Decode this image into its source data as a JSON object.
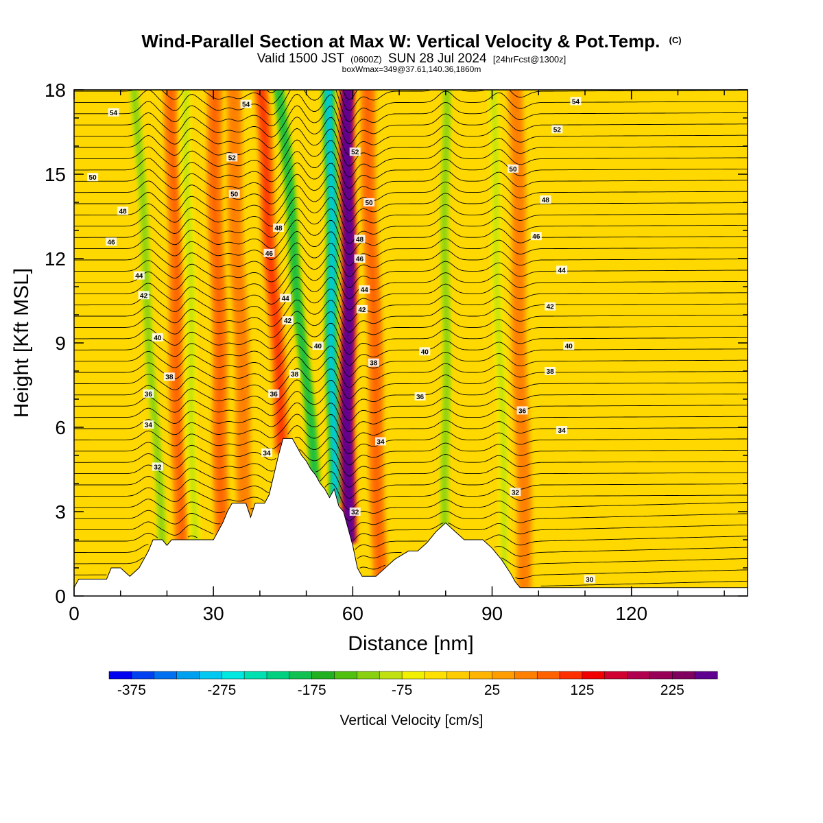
{
  "header": {
    "title": "Wind-Parallel Section at Max W: Vertical Velocity & Pot.Temp.",
    "copyright": "(C)",
    "valid_prefix": "Valid 1500 JST",
    "valid_utc": "(0600Z)",
    "valid_date": "SUN 28 Jul 2024",
    "forecast": "[24hrFcst@1300z]",
    "box_info": "boxWmax=349@37.61,140.36,1860m"
  },
  "chart_data": {
    "type": "heatmap",
    "xlabel": "Distance [nm]",
    "ylabel": "Height [Kft MSL]",
    "xlim": [
      0,
      145
    ],
    "ylim": [
      0,
      18
    ],
    "x_ticks": [
      0,
      30,
      60,
      90,
      120
    ],
    "x_tick_labels": [
      "0",
      "30",
      "60",
      "90",
      "120"
    ],
    "y_ticks": [
      0,
      3,
      6,
      9,
      12,
      15,
      18
    ],
    "y_tick_labels": [
      "0",
      "3",
      "6",
      "9",
      "12",
      "15",
      "18"
    ],
    "colorbar": {
      "label": "Vertical Velocity [cm/s]",
      "tick_values": [
        -375,
        -275,
        -175,
        -75,
        25,
        125,
        225
      ],
      "tick_labels": [
        "-375",
        "-275",
        "-175",
        "-75",
        "25",
        "125",
        "225"
      ],
      "min": -400,
      "max": 275,
      "colors": [
        "#0000f0",
        "#0040f0",
        "#0070f0",
        "#00a0f0",
        "#00c8f0",
        "#00e8e0",
        "#00e0b0",
        "#00d080",
        "#10c050",
        "#20b020",
        "#50c010",
        "#88d010",
        "#c0e010",
        "#f0f000",
        "#ffe000",
        "#ffcc00",
        "#ffb400",
        "#ff9c00",
        "#ff8000",
        "#ff6000",
        "#ff3000",
        "#f00000",
        "#d00030",
        "#b00050",
        "#980058",
        "#800060",
        "#600090"
      ]
    },
    "terrain": [
      [
        0,
        0.3
      ],
      [
        1,
        0.6
      ],
      [
        7,
        0.6
      ],
      [
        8,
        1.0
      ],
      [
        10,
        1.0
      ],
      [
        12,
        0.7
      ],
      [
        14,
        1.0
      ],
      [
        15,
        1.3
      ],
      [
        16,
        1.6
      ],
      [
        17,
        2.0
      ],
      [
        19,
        2.0
      ],
      [
        20,
        1.8
      ],
      [
        21,
        2.0
      ],
      [
        24,
        2.0
      ],
      [
        26,
        2.0
      ],
      [
        29,
        2.0
      ],
      [
        30,
        2.0
      ],
      [
        31,
        2.3
      ],
      [
        32,
        2.6
      ],
      [
        33,
        3.0
      ],
      [
        34,
        3.3
      ],
      [
        37,
        3.3
      ],
      [
        38,
        2.8
      ],
      [
        39,
        3.3
      ],
      [
        41,
        3.3
      ],
      [
        42,
        3.6
      ],
      [
        43,
        4.3
      ],
      [
        44,
        5.0
      ],
      [
        45,
        5.6
      ],
      [
        47,
        5.6
      ],
      [
        48,
        5.3
      ],
      [
        49,
        5.0
      ],
      [
        50,
        4.8
      ],
      [
        51,
        4.5
      ],
      [
        52,
        4.3
      ],
      [
        53,
        4.0
      ],
      [
        54,
        3.8
      ],
      [
        55,
        3.5
      ],
      [
        56,
        3.8
      ],
      [
        57,
        3.2
      ],
      [
        58,
        3.0
      ],
      [
        59,
        2.4
      ],
      [
        60,
        1.8
      ],
      [
        61,
        1.0
      ],
      [
        62,
        0.7
      ],
      [
        65,
        0.7
      ],
      [
        67,
        1.0
      ],
      [
        69,
        1.3
      ],
      [
        72,
        1.6
      ],
      [
        74,
        1.6
      ],
      [
        76,
        1.9
      ],
      [
        78,
        2.3
      ],
      [
        80,
        2.6
      ],
      [
        82,
        2.3
      ],
      [
        84,
        2.0
      ],
      [
        88,
        2.0
      ],
      [
        90,
        1.7
      ],
      [
        92,
        1.3
      ],
      [
        94,
        0.8
      ],
      [
        95,
        0.5
      ],
      [
        96,
        0.3
      ],
      [
        145,
        0.3
      ]
    ],
    "wmax_streaks": [
      {
        "x_bottom": 19,
        "x_top": 13,
        "w": -120
      },
      {
        "x_bottom": 23,
        "x_top": 21,
        "w": 90
      },
      {
        "x_bottom": 26,
        "x_top": 24,
        "w": -90
      },
      {
        "x_bottom": 32,
        "x_top": 30,
        "w": 75
      },
      {
        "x_bottom": 37,
        "x_top": 34,
        "w": 70
      },
      {
        "x_bottom": 45,
        "x_top": 40,
        "w": 120
      },
      {
        "x_bottom": 52,
        "x_top": 44,
        "w": -190
      },
      {
        "x_bottom": 56,
        "x_top": 55,
        "w": -290
      },
      {
        "x_bottom": 59,
        "x_top": 59,
        "w": 349
      },
      {
        "x_bottom": 66,
        "x_top": 63,
        "w": 85
      },
      {
        "x_bottom": 80,
        "x_top": 80,
        "w": -110
      },
      {
        "x_bottom": 93,
        "x_top": 90,
        "w": -95
      },
      {
        "x_bottom": 97,
        "x_top": 95,
        "w": 60
      }
    ],
    "contour_labels": [
      {
        "x": 8.5,
        "y": 17.2,
        "text": "54"
      },
      {
        "x": 37,
        "y": 17.5,
        "text": "54"
      },
      {
        "x": 108,
        "y": 17.6,
        "text": "54"
      },
      {
        "x": 104,
        "y": 16.6,
        "text": "52"
      },
      {
        "x": 34,
        "y": 15.6,
        "text": "52"
      },
      {
        "x": 60.5,
        "y": 15.8,
        "text": "52"
      },
      {
        "x": 4,
        "y": 14.9,
        "text": "50"
      },
      {
        "x": 34.5,
        "y": 14.3,
        "text": "50"
      },
      {
        "x": 63.5,
        "y": 14.0,
        "text": "50"
      },
      {
        "x": 94.5,
        "y": 15.2,
        "text": "50"
      },
      {
        "x": 10.5,
        "y": 13.7,
        "text": "48"
      },
      {
        "x": 44,
        "y": 13.1,
        "text": "48"
      },
      {
        "x": 61.5,
        "y": 12.7,
        "text": "48"
      },
      {
        "x": 101.5,
        "y": 14.1,
        "text": "48"
      },
      {
        "x": 8,
        "y": 12.6,
        "text": "46"
      },
      {
        "x": 42,
        "y": 12.2,
        "text": "46"
      },
      {
        "x": 61.5,
        "y": 12.0,
        "text": "46"
      },
      {
        "x": 99.5,
        "y": 12.8,
        "text": "46"
      },
      {
        "x": 14,
        "y": 11.4,
        "text": "44"
      },
      {
        "x": 45.5,
        "y": 10.6,
        "text": "44"
      },
      {
        "x": 62.5,
        "y": 10.9,
        "text": "44"
      },
      {
        "x": 105,
        "y": 11.6,
        "text": "44"
      },
      {
        "x": 15,
        "y": 10.7,
        "text": "42"
      },
      {
        "x": 46,
        "y": 9.8,
        "text": "42"
      },
      {
        "x": 62,
        "y": 10.2,
        "text": "42"
      },
      {
        "x": 102.5,
        "y": 10.3,
        "text": "42"
      },
      {
        "x": 18,
        "y": 9.2,
        "text": "40"
      },
      {
        "x": 52.5,
        "y": 8.9,
        "text": "40"
      },
      {
        "x": 75.5,
        "y": 8.7,
        "text": "40"
      },
      {
        "x": 106.5,
        "y": 8.9,
        "text": "40"
      },
      {
        "x": 20.5,
        "y": 7.8,
        "text": "38"
      },
      {
        "x": 47.5,
        "y": 7.9,
        "text": "38"
      },
      {
        "x": 64.5,
        "y": 8.3,
        "text": "38"
      },
      {
        "x": 102.5,
        "y": 8.0,
        "text": "38"
      },
      {
        "x": 16,
        "y": 7.2,
        "text": "36"
      },
      {
        "x": 43,
        "y": 7.2,
        "text": "36"
      },
      {
        "x": 74.5,
        "y": 7.1,
        "text": "36"
      },
      {
        "x": 96.5,
        "y": 6.6,
        "text": "36"
      },
      {
        "x": 16,
        "y": 6.1,
        "text": "34"
      },
      {
        "x": 41.5,
        "y": 5.1,
        "text": "34"
      },
      {
        "x": 66,
        "y": 5.5,
        "text": "34"
      },
      {
        "x": 105,
        "y": 5.9,
        "text": "34"
      },
      {
        "x": 18,
        "y": 4.6,
        "text": "32"
      },
      {
        "x": 60.5,
        "y": 3.0,
        "text": "32"
      },
      {
        "x": 95,
        "y": 3.7,
        "text": "32"
      },
      {
        "x": 111,
        "y": 0.6,
        "text": "30"
      }
    ]
  }
}
